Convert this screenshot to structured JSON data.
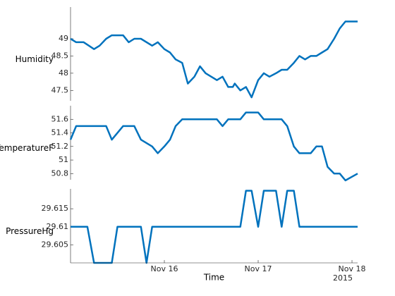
{
  "chart_data": [
    {
      "type": "line",
      "ylabel": "Humidity",
      "x": [
        15.0,
        15.06,
        15.14,
        15.25,
        15.31,
        15.38,
        15.44,
        15.56,
        15.62,
        15.68,
        15.75,
        15.87,
        15.93,
        16.0,
        16.06,
        16.12,
        16.19,
        16.25,
        16.32,
        16.38,
        16.44,
        16.5,
        16.56,
        16.62,
        16.68,
        16.73,
        16.75,
        16.81,
        16.87,
        16.93,
        17.0,
        17.06,
        17.12,
        17.19,
        17.25,
        17.31,
        17.38,
        17.44,
        17.5,
        17.56,
        17.62,
        17.68,
        17.74,
        17.81,
        17.87,
        17.93,
        18.06
      ],
      "values": [
        49,
        48.9,
        48.9,
        48.7,
        48.8,
        49,
        49.1,
        49.1,
        48.9,
        49,
        49,
        48.8,
        48.9,
        48.7,
        48.6,
        48.4,
        48.3,
        47.7,
        47.9,
        48.2,
        48.0,
        47.9,
        47.8,
        47.9,
        47.6,
        47.6,
        47.7,
        47.5,
        47.6,
        47.3,
        47.8,
        48.0,
        47.9,
        48.0,
        48.1,
        48.1,
        48.3,
        48.5,
        48.4,
        48.5,
        48.5,
        48.6,
        48.7,
        49.0,
        49.3,
        49.5,
        49.5
      ],
      "color": "#0072bd",
      "xlim": [
        15.0,
        18.06
      ],
      "ylim": [
        47.2,
        49.92
      ],
      "yticks": [
        47.5,
        48,
        48.5,
        49
      ]
    },
    {
      "type": "line",
      "ylabel": "TemperatureF",
      "x": [
        15.0,
        15.06,
        15.14,
        15.25,
        15.31,
        15.38,
        15.44,
        15.56,
        15.62,
        15.68,
        15.75,
        15.87,
        15.93,
        16.0,
        16.06,
        16.12,
        16.19,
        16.25,
        16.32,
        16.38,
        16.44,
        16.5,
        16.56,
        16.62,
        16.68,
        16.73,
        16.75,
        16.81,
        16.87,
        16.93,
        17.0,
        17.06,
        17.12,
        17.19,
        17.25,
        17.31,
        17.38,
        17.44,
        17.5,
        17.56,
        17.62,
        17.68,
        17.74,
        17.81,
        17.87,
        17.93,
        18.06
      ],
      "values": [
        51.3,
        51.5,
        51.5,
        51.5,
        51.5,
        51.5,
        51.3,
        51.5,
        51.5,
        51.5,
        51.3,
        51.2,
        51.1,
        51.2,
        51.3,
        51.5,
        51.6,
        51.6,
        51.6,
        51.6,
        51.6,
        51.6,
        51.6,
        51.5,
        51.6,
        51.6,
        51.6,
        51.6,
        51.7,
        51.7,
        51.7,
        51.6,
        51.6,
        51.6,
        51.6,
        51.5,
        51.2,
        51.1,
        51.1,
        51.1,
        51.2,
        51.2,
        50.9,
        50.8,
        50.8,
        50.7,
        50.8
      ],
      "color": "#0072bd",
      "xlim": [
        15.0,
        18.06
      ],
      "ylim": [
        50.71,
        51.8
      ],
      "yticks": [
        50.8,
        51,
        51.2,
        51.4,
        51.6
      ]
    },
    {
      "type": "line",
      "ylabel": "PressureHg",
      "x": [
        15.0,
        15.18,
        15.25,
        15.44,
        15.5,
        15.75,
        15.81,
        15.87,
        16.81,
        16.87,
        16.93,
        17.0,
        17.06,
        17.19,
        17.25,
        17.31,
        17.38,
        17.44,
        18.06
      ],
      "values": [
        29.61,
        29.61,
        29.6,
        29.6,
        29.61,
        29.61,
        29.6,
        29.61,
        29.61,
        29.62,
        29.62,
        29.61,
        29.62,
        29.62,
        29.61,
        29.62,
        29.62,
        29.61,
        29.61
      ],
      "color": "#0072bd",
      "xlim": [
        15.0,
        18.06
      ],
      "ylim": [
        29.6,
        29.6205
      ],
      "yticks": [
        29.605,
        29.61,
        29.615
      ],
      "xlabel": "Time",
      "x_year_label": "2015",
      "xticks": [
        {
          "value": 16,
          "label": "Nov 16"
        },
        {
          "value": 17,
          "label": "Nov 17"
        },
        {
          "value": 18,
          "label": "Nov 18"
        }
      ]
    }
  ]
}
